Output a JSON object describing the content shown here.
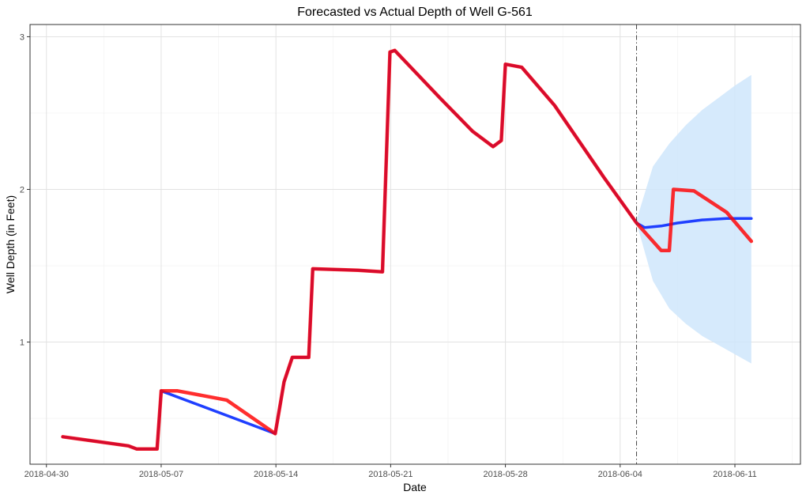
{
  "chart_data": {
    "type": "line",
    "title": "Forecasted vs Actual Depth of Well G-561",
    "xlabel": "Date",
    "ylabel": "Well Depth (in Feet)",
    "x_type": "date",
    "xlim": [
      "2018-04-29",
      "2018-06-15"
    ],
    "ylim": [
      0.2,
      3.08
    ],
    "x_ticks": [
      "2018-04-30",
      "2018-05-07",
      "2018-05-14",
      "2018-05-21",
      "2018-05-28",
      "2018-06-04",
      "2018-06-11"
    ],
    "y_ticks": [
      1,
      2,
      3
    ],
    "grid": true,
    "legend": "none",
    "forecast_start": "2018-06-05",
    "colors": {
      "actual": "#ff0000",
      "fitted_forecast": "#1f3fff",
      "confidence_band": "#cfe6fb",
      "vline": "#444444"
    },
    "series": [
      {
        "role": "fitted_forecast",
        "x": [
          "2018-05-01 00:00",
          "2018-05-05 00:00",
          "2018-05-05 12:00",
          "2018-05-06 18:00",
          "2018-05-07 00:00",
          "2018-05-13 23:00",
          "2018-05-14 12:00",
          "2018-05-15 00:00",
          "2018-05-16 00:00",
          "2018-05-16 06:00",
          "2018-05-19 00:00",
          "2018-05-20 12:00",
          "2018-05-20 23:00",
          "2018-05-21 06:00",
          "2018-05-24 00:00",
          "2018-05-26 00:00",
          "2018-05-27 06:00",
          "2018-05-27 18:00",
          "2018-05-28 00:00",
          "2018-05-29 00:00",
          "2018-05-31 00:00",
          "2018-06-03 00:00",
          "2018-06-05 00:00",
          "2018-06-05 12:00",
          "2018-06-06 12:00",
          "2018-06-07 12:00",
          "2018-06-09 00:00",
          "2018-06-10 12:00",
          "2018-06-12 00:00"
        ],
        "y": [
          0.38,
          0.32,
          0.3,
          0.3,
          0.68,
          0.4,
          0.74,
          0.9,
          0.9,
          1.48,
          1.47,
          1.46,
          2.9,
          2.91,
          2.6,
          2.38,
          2.28,
          2.32,
          2.82,
          2.8,
          2.55,
          2.08,
          1.78,
          1.75,
          1.76,
          1.78,
          1.8,
          1.81,
          1.81
        ]
      },
      {
        "role": "actual",
        "x": [
          "2018-05-01 00:00",
          "2018-05-05 00:00",
          "2018-05-05 12:00",
          "2018-05-06 18:00",
          "2018-05-07 00:00",
          "2018-05-08 00:00",
          "2018-05-11 00:00",
          "2018-05-13 23:00",
          "2018-05-14 12:00",
          "2018-05-15 00:00",
          "2018-05-16 00:00",
          "2018-05-16 06:00",
          "2018-05-19 00:00",
          "2018-05-20 12:00",
          "2018-05-20 23:00",
          "2018-05-21 06:00",
          "2018-05-24 00:00",
          "2018-05-26 00:00",
          "2018-05-27 06:00",
          "2018-05-27 18:00",
          "2018-05-28 00:00",
          "2018-05-29 00:00",
          "2018-05-31 00:00",
          "2018-06-03 00:00",
          "2018-06-05 00:00",
          "2018-06-06 12:00",
          "2018-06-07 00:00",
          "2018-06-07 06:00",
          "2018-06-08 12:00",
          "2018-06-10 12:00",
          "2018-06-12 00:00"
        ],
        "y": [
          0.38,
          0.32,
          0.3,
          0.3,
          0.68,
          0.68,
          0.62,
          0.4,
          0.74,
          0.9,
          0.9,
          1.48,
          1.47,
          1.46,
          2.9,
          2.91,
          2.6,
          2.38,
          2.28,
          2.32,
          2.82,
          2.8,
          2.55,
          2.08,
          1.78,
          1.6,
          1.6,
          2.0,
          1.99,
          1.85,
          1.66
        ]
      }
    ],
    "band": {
      "x": [
        "2018-06-05 00:00",
        "2018-06-06 00:00",
        "2018-06-07 00:00",
        "2018-06-08 00:00",
        "2018-06-09 00:00",
        "2018-06-10 00:00",
        "2018-06-11 00:00",
        "2018-06-12 00:00"
      ],
      "upper": [
        1.8,
        2.15,
        2.3,
        2.42,
        2.52,
        2.6,
        2.68,
        2.75
      ],
      "lower": [
        1.78,
        1.4,
        1.22,
        1.12,
        1.04,
        0.98,
        0.92,
        0.86
      ]
    }
  }
}
